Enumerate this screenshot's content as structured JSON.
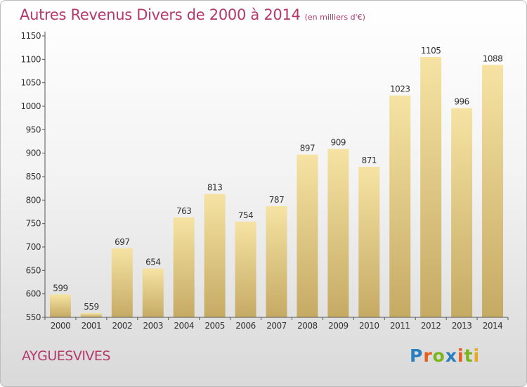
{
  "header": {
    "title": "Autres Revenus Divers de 2000 à 2014",
    "unit": "(en milliers d'€)"
  },
  "footer": {
    "commune": "AYGUESVIVES",
    "logo": "Proxiti"
  },
  "colors": {
    "title": "#b4386a",
    "bar_light": "#f6e3a3",
    "bar_dark": "#c5aa64",
    "logo": [
      "#2b7fc1",
      "#e85c1c",
      "#7ab51d",
      "#2b7fc1",
      "#e85c1c",
      "#7ab51d",
      "#e8a91c"
    ]
  },
  "chart_data": {
    "type": "bar",
    "categories": [
      "2000",
      "2001",
      "2002",
      "2003",
      "2004",
      "2005",
      "2006",
      "2007",
      "2008",
      "2009",
      "2010",
      "2011",
      "2012",
      "2013",
      "2014"
    ],
    "values": [
      599,
      559,
      697,
      654,
      763,
      813,
      754,
      787,
      897,
      909,
      871,
      1023,
      1105,
      996,
      1088
    ],
    "title": "Autres Revenus Divers de 2000 à 2014",
    "subtitle": "(en milliers d'€)",
    "xlabel": "",
    "ylabel": "",
    "ylim": [
      550,
      1150
    ],
    "yticks": [
      550,
      600,
      650,
      700,
      750,
      800,
      850,
      900,
      950,
      1000,
      1050,
      1100,
      1150
    ],
    "grid": false,
    "legend": "none"
  }
}
